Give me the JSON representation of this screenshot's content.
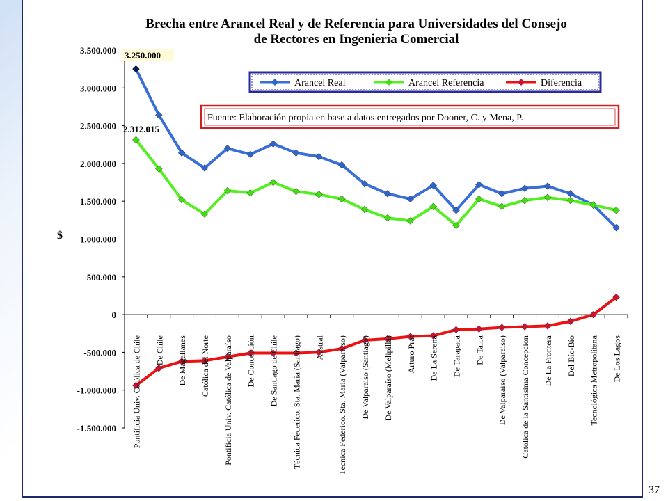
{
  "page_number": "37",
  "chart_data": {
    "type": "line",
    "title_lines": [
      "Brecha entre Arancel Real y de Referencia para Universidades del Consejo",
      "de Rectores  en Ingenieria Comercial"
    ],
    "ylabel": "$",
    "ylim": [
      -1500000,
      3500000
    ],
    "yticks": [
      3500000,
      3000000,
      2500000,
      2000000,
      1500000,
      1000000,
      500000,
      0,
      -500000,
      -1000000,
      -1500000
    ],
    "ytick_labels": [
      "3.500.000",
      "3.000.000",
      "2.500.000",
      "2.000.000",
      "1.500.000",
      "1.000.000",
      "500.000",
      "0",
      "-500.000",
      "-1.000.000",
      "-1.500.000"
    ],
    "categories": [
      "Pontificia Univ. Católica de Chile",
      "De Chile",
      "De Magallanes",
      "Católica del Norte",
      "Pontificia Univ. Católica de Valparaíso",
      "De Concepción",
      "De Santiago de Chile",
      "Técnica Federico. Sta. María (Santiago)",
      "Austral",
      "Técnica Federico. Sta. María (Valparaíso)",
      "De Valparaíso (Santiago)",
      "De Valparaíso (Melipilla)",
      "Arturo Prat",
      "De La Serena",
      "De Tarapacá",
      "De Talca",
      "De Valparaíso (Valparaíso)",
      "Católica de la Santísima Concepción",
      "De La Frontera",
      "Del Bío-Bío",
      "Tecnológica Metropolitana",
      "De Los Lagos"
    ],
    "series": [
      {
        "name": "Arancel Real",
        "color": "#3a6fd8",
        "marker": "#2f64c8",
        "values": [
          3250000,
          2640000,
          2140000,
          1940000,
          2200000,
          2120000,
          2260000,
          2140000,
          2090000,
          1980000,
          1730000,
          1600000,
          1530000,
          1710000,
          1380000,
          1720000,
          1600000,
          1670000,
          1700000,
          1600000,
          1450000,
          1150000
        ]
      },
      {
        "name": "Arancel Referencia",
        "color": "#55ee22",
        "marker": "#44dd11",
        "values": [
          2312015,
          1930000,
          1520000,
          1330000,
          1640000,
          1610000,
          1750000,
          1630000,
          1590000,
          1530000,
          1390000,
          1280000,
          1240000,
          1430000,
          1180000,
          1530000,
          1430000,
          1510000,
          1550000,
          1510000,
          1450000,
          1380000
        ]
      },
      {
        "name": "Diferencia",
        "color": "#ee1111",
        "marker": "#cc1133",
        "values": [
          -937985,
          -710000,
          -620000,
          -610000,
          -560000,
          -510000,
          -510000,
          -510000,
          -500000,
          -450000,
          -340000,
          -320000,
          -290000,
          -280000,
          -200000,
          -190000,
          -170000,
          -160000,
          -150000,
          -90000,
          0,
          230000
        ]
      }
    ],
    "annotations": [
      "3.250.000",
      "2.312.015"
    ],
    "legend_position": "top-right",
    "source_note": "Fuente: Elaboración propia en base a datos entregados por Dooner, C. y Mena, P."
  }
}
